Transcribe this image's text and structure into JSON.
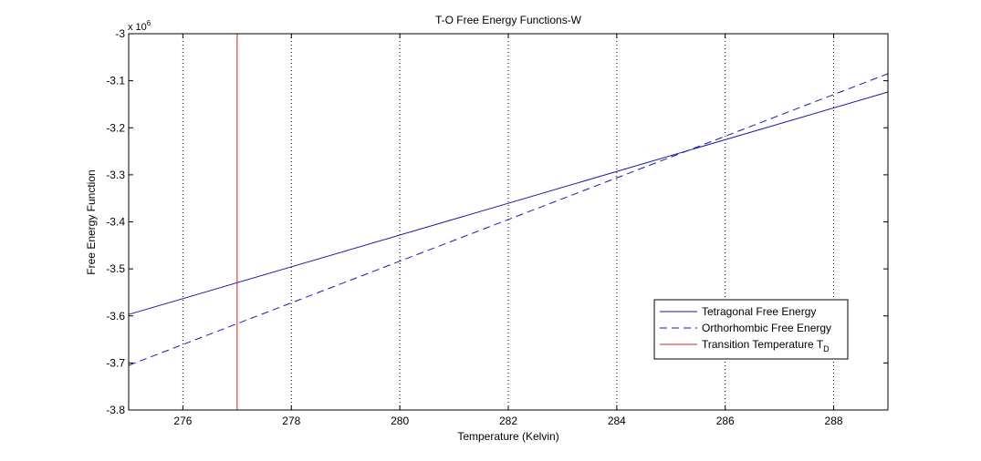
{
  "chart_data": {
    "type": "line",
    "title": "T-O Free Energy Functions-W",
    "xlabel": "Temperature (Kelvin)",
    "ylabel": "Free Energy Function",
    "y_exponent_label": "x 10",
    "y_exponent_power": "6",
    "xlim": [
      275,
      289
    ],
    "ylim": [
      -3.8,
      -3.0
    ],
    "y_scale_factor": 1000000,
    "x_ticks": [
      276,
      278,
      280,
      282,
      284,
      286,
      288
    ],
    "x_tick_labels": [
      "276",
      "278",
      "280",
      "282",
      "284",
      "286",
      "288"
    ],
    "y_ticks": [
      -3.8,
      -3.7,
      -3.6,
      -3.5,
      -3.4,
      -3.3,
      -3.2,
      -3.1,
      -3.0
    ],
    "y_tick_labels": [
      "-3.8",
      "-3.7",
      "-3.6",
      "-3.5",
      "-3.4",
      "-3.3",
      "-3.2",
      "-3.1",
      "-3"
    ],
    "vertical_grid": true,
    "horizontal_grid": false,
    "legend_position": "bottom-right",
    "series": [
      {
        "name": "Tetragonal Free Energy",
        "style": "solid",
        "color": "#1a1aa8",
        "x": [
          275,
          289
        ],
        "y": [
          -3.597,
          -3.124
        ]
      },
      {
        "name": "Orthorhombic Free Energy",
        "style": "dashed",
        "color": "#1a1aa8",
        "x": [
          275,
          289
        ],
        "y": [
          -3.705,
          -3.085
        ]
      }
    ],
    "vertical_line": {
      "name": "Transition Temperature T",
      "name_subscript": "D",
      "color": "#d42020",
      "x": 277
    }
  }
}
